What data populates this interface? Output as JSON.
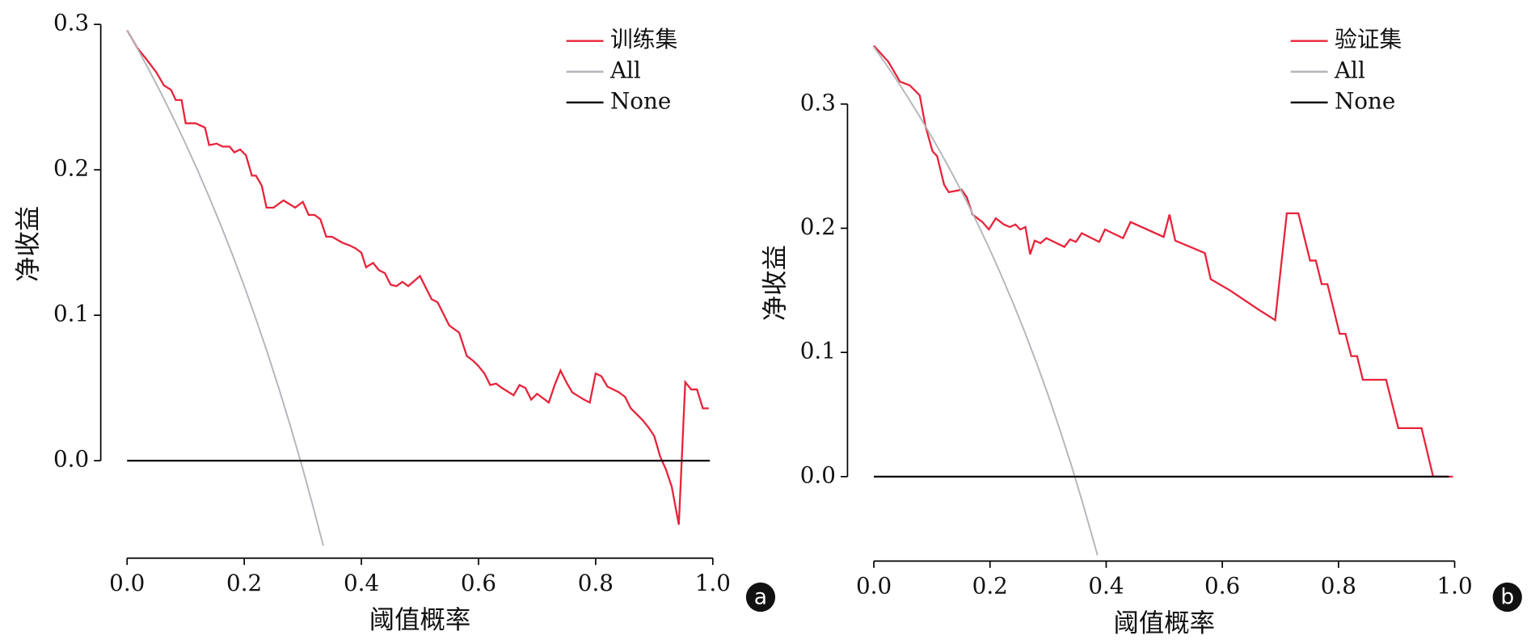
{
  "chart_data": [
    {
      "type": "line",
      "panel_label": "a",
      "xlabel": "阈值概率",
      "ylabel": "净收益",
      "xlim": [
        0,
        1
      ],
      "ylim": [
        -0.067,
        0.3
      ],
      "xticks": [
        {
          "value": 0,
          "label": "0.0"
        },
        0.2,
        0.4,
        0.6,
        0.8,
        {
          "value": 1,
          "label": "1.0"
        }
      ],
      "yticks": [
        {
          "value": 0,
          "label": "0.0"
        },
        0.1,
        0.2,
        0.3
      ],
      "series": [
        {
          "name": "训练集",
          "color": "#e8233a",
          "x": [
            0,
            0.017,
            0.033,
            0.05,
            0.063,
            0.075,
            0.083,
            0.093,
            0.1,
            0.117,
            0.133,
            0.14,
            0.153,
            0.163,
            0.175,
            0.183,
            0.193,
            0.203,
            0.213,
            0.22,
            0.23,
            0.238,
            0.25,
            0.267,
            0.287,
            0.3,
            0.31,
            0.32,
            0.33,
            0.34,
            0.35,
            0.367,
            0.38,
            0.39,
            0.4,
            0.408,
            0.42,
            0.43,
            0.44,
            0.45,
            0.46,
            0.47,
            0.48,
            0.5,
            0.51,
            0.52,
            0.53,
            0.55,
            0.567,
            0.58,
            0.59,
            0.6,
            0.61,
            0.62,
            0.63,
            0.64,
            0.66,
            0.67,
            0.68,
            0.69,
            0.7,
            0.72,
            0.73,
            0.74,
            0.75,
            0.76,
            0.78,
            0.79,
            0.8,
            0.81,
            0.82,
            0.84,
            0.85,
            0.86,
            0.88,
            0.89,
            0.9,
            0.91,
            0.92,
            0.93,
            0.942,
            0.953,
            0.963,
            0.973,
            0.983,
            0.993
          ],
          "values": [
            0.296,
            0.284,
            0.276,
            0.267,
            0.258,
            0.255,
            0.248,
            0.248,
            0.232,
            0.232,
            0.229,
            0.217,
            0.218,
            0.216,
            0.216,
            0.212,
            0.214,
            0.21,
            0.196,
            0.196,
            0.189,
            0.174,
            0.174,
            0.179,
            0.174,
            0.178,
            0.169,
            0.169,
            0.166,
            0.154,
            0.154,
            0.15,
            0.148,
            0.146,
            0.143,
            0.133,
            0.136,
            0.131,
            0.129,
            0.121,
            0.12,
            0.123,
            0.12,
            0.127,
            0.119,
            0.111,
            0.109,
            0.093,
            0.088,
            0.072,
            0.069,
            0.065,
            0.06,
            0.052,
            0.053,
            0.05,
            0.045,
            0.052,
            0.05,
            0.042,
            0.046,
            0.04,
            0.052,
            0.062,
            0.054,
            0.047,
            0.042,
            0.04,
            0.06,
            0.058,
            0.051,
            0.047,
            0.044,
            0.036,
            0.028,
            0.023,
            0.017,
            0.003,
            -0.006,
            -0.018,
            -0.044,
            0.054,
            0.049,
            0.049,
            0.036,
            0.036
          ]
        },
        {
          "name": "All",
          "color": "#b3b6bb",
          "x": [
            0,
            0.02,
            0.04,
            0.06,
            0.08,
            0.1,
            0.12,
            0.14,
            0.16,
            0.18,
            0.2,
            0.22,
            0.24,
            0.26,
            0.28,
            0.3,
            0.32,
            0.335
          ],
          "values": [
            0.296,
            0.2816,
            0.2667,
            0.2511,
            0.2348,
            0.2178,
            0.2,
            0.1814,
            0.1619,
            0.1415,
            0.12,
            0.0974,
            0.0737,
            0.0486,
            0.0222,
            -0.0057,
            -0.0353,
            -0.0585
          ]
        },
        {
          "name": "None",
          "color": "#000000",
          "x": [
            0,
            0.995
          ],
          "values": [
            0,
            0
          ]
        }
      ]
    },
    {
      "type": "line",
      "panel_label": "b",
      "xlabel": "阈值概率",
      "ylabel": "净收益",
      "xlim": [
        0,
        1
      ],
      "ylim": [
        -0.068,
        0.35
      ],
      "xticks": [
        {
          "value": 0,
          "label": "0.0"
        },
        0.2,
        0.4,
        0.6,
        0.8,
        {
          "value": 1,
          "label": "1.0"
        }
      ],
      "yticks": [
        {
          "value": 0,
          "label": "0.0"
        },
        0.1,
        0.2,
        0.3
      ],
      "series": [
        {
          "name": "验证集",
          "color": "#e8233a",
          "x": [
            0,
            0.025,
            0.045,
            0.062,
            0.079,
            0.089,
            0.101,
            0.109,
            0.121,
            0.129,
            0.151,
            0.16,
            0.17,
            0.187,
            0.198,
            0.21,
            0.224,
            0.234,
            0.244,
            0.252,
            0.261,
            0.269,
            0.277,
            0.287,
            0.297,
            0.328,
            0.338,
            0.348,
            0.358,
            0.388,
            0.398,
            0.429,
            0.442,
            0.499,
            0.509,
            0.519,
            0.57,
            0.58,
            0.613,
            0.664,
            0.691,
            0.711,
            0.731,
            0.751,
            0.761,
            0.771,
            0.781,
            0.802,
            0.812,
            0.822,
            0.832,
            0.842,
            0.882,
            0.903,
            0.943,
            0.963,
            0.997
          ],
          "values": [
            0.347,
            0.334,
            0.318,
            0.315,
            0.307,
            0.282,
            0.262,
            0.258,
            0.235,
            0.229,
            0.231,
            0.225,
            0.211,
            0.205,
            0.199,
            0.208,
            0.203,
            0.201,
            0.203,
            0.199,
            0.201,
            0.179,
            0.19,
            0.188,
            0.192,
            0.185,
            0.191,
            0.189,
            0.196,
            0.189,
            0.199,
            0.192,
            0.205,
            0.193,
            0.211,
            0.19,
            0.18,
            0.159,
            0.15,
            0.134,
            0.126,
            0.212,
            0.212,
            0.174,
            0.174,
            0.155,
            0.155,
            0.115,
            0.115,
            0.097,
            0.097,
            0.078,
            0.078,
            0.039,
            0.039,
            0,
            0
          ]
        },
        {
          "name": "All",
          "color": "#b3b6bb",
          "x": [
            0,
            0.02,
            0.04,
            0.06,
            0.08,
            0.1,
            0.12,
            0.14,
            0.16,
            0.18,
            0.2,
            0.22,
            0.24,
            0.26,
            0.28,
            0.3,
            0.32,
            0.34,
            0.36,
            0.38,
            0.385
          ],
          "values": [
            0.346,
            0.3327,
            0.3188,
            0.3043,
            0.2891,
            0.2733,
            0.2568,
            0.2395,
            0.2214,
            0.2024,
            0.1825,
            0.1615,
            0.1395,
            0.1162,
            0.0917,
            0.0657,
            0.0382,
            0.0091,
            -0.0219,
            -0.0548,
            -0.0634
          ]
        },
        {
          "name": "None",
          "color": "#000000",
          "x": [
            0,
            0.99
          ],
          "values": [
            0,
            0
          ]
        }
      ]
    }
  ]
}
